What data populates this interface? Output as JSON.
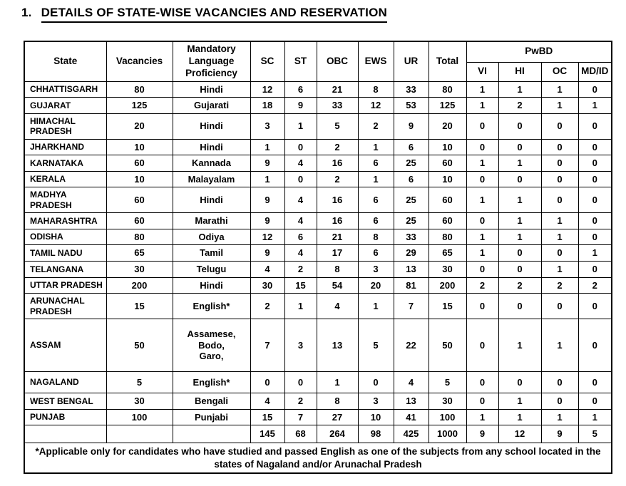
{
  "page": {
    "title_number": "1.",
    "title_text": "DETAILS OF STATE-WISE VACANCIES AND RESERVATION"
  },
  "table": {
    "headers": {
      "state": "State",
      "vacancies": "Vacancies",
      "language": "Mandatory Language Proficiency",
      "sc": "SC",
      "st": "ST",
      "obc": "OBC",
      "ews": "EWS",
      "ur": "UR",
      "total": "Total",
      "pwbd": "PwBD",
      "vi": "VI",
      "hi": "HI",
      "oc": "OC",
      "mdid": "MD/ID"
    },
    "rows": [
      {
        "state": "CHHATTISGARH",
        "vacancies": "80",
        "language": "Hindi",
        "sc": "12",
        "st": "6",
        "obc": "21",
        "ews": "8",
        "ur": "33",
        "total": "80",
        "vi": "1",
        "hi": "1",
        "oc": "1",
        "mdid": "0"
      },
      {
        "state": "GUJARAT",
        "vacancies": "125",
        "language": "Gujarati",
        "sc": "18",
        "st": "9",
        "obc": "33",
        "ews": "12",
        "ur": "53",
        "total": "125",
        "vi": "1",
        "hi": "2",
        "oc": "1",
        "mdid": "1"
      },
      {
        "state": "HIMACHAL PRADESH",
        "vacancies": "20",
        "language": "Hindi",
        "sc": "3",
        "st": "1",
        "obc": "5",
        "ews": "2",
        "ur": "9",
        "total": "20",
        "vi": "0",
        "hi": "0",
        "oc": "0",
        "mdid": "0"
      },
      {
        "state": "JHARKHAND",
        "vacancies": "10",
        "language": "Hindi",
        "sc": "1",
        "st": "0",
        "obc": "2",
        "ews": "1",
        "ur": "6",
        "total": "10",
        "vi": "0",
        "hi": "0",
        "oc": "0",
        "mdid": "0"
      },
      {
        "state": "KARNATAKA",
        "vacancies": "60",
        "language": "Kannada",
        "sc": "9",
        "st": "4",
        "obc": "16",
        "ews": "6",
        "ur": "25",
        "total": "60",
        "vi": "1",
        "hi": "1",
        "oc": "0",
        "mdid": "0"
      },
      {
        "state": "KERALA",
        "vacancies": "10",
        "language": "Malayalam",
        "sc": "1",
        "st": "0",
        "obc": "2",
        "ews": "1",
        "ur": "6",
        "total": "10",
        "vi": "0",
        "hi": "0",
        "oc": "0",
        "mdid": "0"
      },
      {
        "state": "MADHYA PRADESH",
        "vacancies": "60",
        "language": "Hindi",
        "sc": "9",
        "st": "4",
        "obc": "16",
        "ews": "6",
        "ur": "25",
        "total": "60",
        "vi": "1",
        "hi": "1",
        "oc": "0",
        "mdid": "0"
      },
      {
        "state": "MAHARASHTRA",
        "vacancies": "60",
        "language": "Marathi",
        "sc": "9",
        "st": "4",
        "obc": "16",
        "ews": "6",
        "ur": "25",
        "total": "60",
        "vi": "0",
        "hi": "1",
        "oc": "1",
        "mdid": "0"
      },
      {
        "state": "ODISHA",
        "vacancies": "80",
        "language": "Odiya",
        "sc": "12",
        "st": "6",
        "obc": "21",
        "ews": "8",
        "ur": "33",
        "total": "80",
        "vi": "1",
        "hi": "1",
        "oc": "1",
        "mdid": "0"
      },
      {
        "state": "TAMIL NADU",
        "vacancies": "65",
        "language": "Tamil",
        "sc": "9",
        "st": "4",
        "obc": "17",
        "ews": "6",
        "ur": "29",
        "total": "65",
        "vi": "1",
        "hi": "0",
        "oc": "0",
        "mdid": "1"
      },
      {
        "state": "TELANGANA",
        "vacancies": "30",
        "language": "Telugu",
        "sc": "4",
        "st": "2",
        "obc": "8",
        "ews": "3",
        "ur": "13",
        "total": "30",
        "vi": "0",
        "hi": "0",
        "oc": "1",
        "mdid": "0"
      },
      {
        "state": "UTTAR PRADESH",
        "vacancies": "200",
        "language": "Hindi",
        "sc": "30",
        "st": "15",
        "obc": "54",
        "ews": "20",
        "ur": "81",
        "total": "200",
        "vi": "2",
        "hi": "2",
        "oc": "2",
        "mdid": "2"
      },
      {
        "state": "ARUNACHAL PRADESH",
        "vacancies": "15",
        "language": "English*",
        "sc": "2",
        "st": "1",
        "obc": "4",
        "ews": "1",
        "ur": "7",
        "total": "15",
        "vi": "0",
        "hi": "0",
        "oc": "0",
        "mdid": "0"
      },
      {
        "state": "ASSAM",
        "vacancies": "50",
        "language": "Assamese,\nBodo,\nGaro,",
        "sc": "7",
        "st": "3",
        "obc": "13",
        "ews": "5",
        "ur": "22",
        "total": "50",
        "vi": "0",
        "hi": "1",
        "oc": "1",
        "mdid": "0"
      },
      {
        "state": "NAGALAND",
        "vacancies": "5",
        "language": "English*",
        "sc": "0",
        "st": "0",
        "obc": "1",
        "ews": "0",
        "ur": "4",
        "total": "5",
        "vi": "0",
        "hi": "0",
        "oc": "0",
        "mdid": "0"
      },
      {
        "state": "WEST BENGAL",
        "vacancies": "30",
        "language": "Bengali",
        "sc": "4",
        "st": "2",
        "obc": "8",
        "ews": "3",
        "ur": "13",
        "total": "30",
        "vi": "0",
        "hi": "1",
        "oc": "0",
        "mdid": "0"
      },
      {
        "state": "PUNJAB",
        "vacancies": "100",
        "language": "Punjabi",
        "sc": "15",
        "st": "7",
        "obc": "27",
        "ews": "10",
        "ur": "41",
        "total": "100",
        "vi": "1",
        "hi": "1",
        "oc": "1",
        "mdid": "1"
      }
    ],
    "totals": {
      "state": "",
      "vacancies": "",
      "language": "",
      "sc": "145",
      "st": "68",
      "obc": "264",
      "ews": "98",
      "ur": "425",
      "total": "1000",
      "vi": "9",
      "hi": "12",
      "oc": "9",
      "mdid": "5"
    },
    "footnote": "*Applicable only for candidates who have studied and passed English as one of the subjects from any school located in the\nstates of Nagaland and/or Arunachal Pradesh"
  }
}
